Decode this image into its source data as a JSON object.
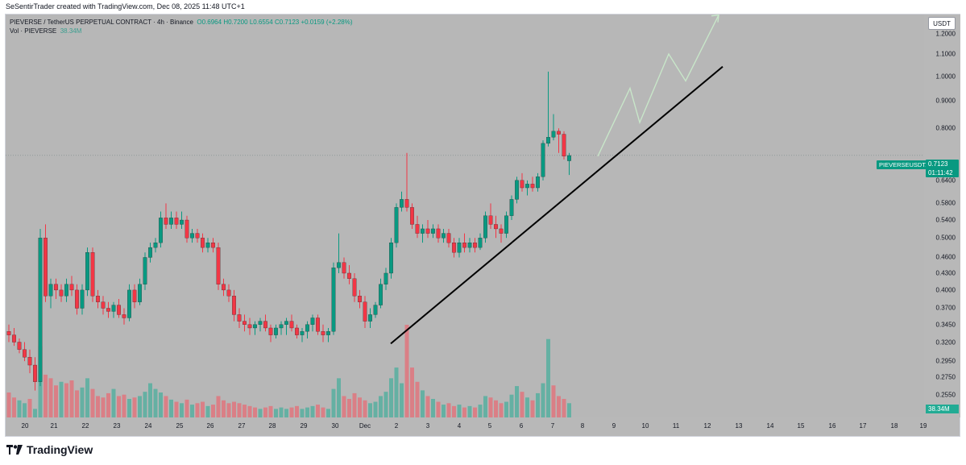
{
  "creator_text": "SeSentirTrader created with TradingView.com, Dec 08, 2025 11:48 UTC+1",
  "legend": {
    "symbol_line": "PIEVERSE / TetherUS PERPETUAL CONTRACT · 4h · Binance",
    "open": "O0.6964",
    "high": "H0.7200",
    "low": "L0.6554",
    "close": "C0.7123",
    "change": "+0.0159 (+2.28%)",
    "vol_label": "Vol · PIEVERSE",
    "vol_value": "38.34M"
  },
  "currency_button": "USDT",
  "price_axis_labels": [
    "1.2000",
    "1.1000",
    "1.0000",
    "0.9000",
    "0.8000",
    "0.6400",
    "0.5800",
    "0.5400",
    "0.5000",
    "0.4600",
    "0.4300",
    "0.4000",
    "0.3700",
    "0.3450",
    "0.3200",
    "0.2950",
    "0.2750",
    "0.2550"
  ],
  "last_price": {
    "symbol": "PIEVERSEUSDT.P",
    "price": "0.7123",
    "countdown": "01:11:42"
  },
  "volume_tag": "38.34M",
  "time_axis_labels": [
    "20",
    "21",
    "22",
    "23",
    "24",
    "25",
    "26",
    "27",
    "28",
    "29",
    "30",
    "Dec",
    "2",
    "3",
    "4",
    "5",
    "6",
    "7",
    "8",
    "9",
    "10",
    "11",
    "12",
    "13",
    "14",
    "15",
    "16",
    "17",
    "18",
    "19"
  ],
  "colors": {
    "up": "#089981",
    "down": "#f23645",
    "up_vol": "#22ab94",
    "down_vol": "#f7525f",
    "background": "#b7b7b7",
    "projection": "#c8e6c9"
  },
  "footer_brand": "TradingView",
  "chart_data": {
    "type": "candlestick",
    "symbol": "PIEVERSEUSDT.P",
    "interval": "4h",
    "ylim": [
      0.25,
      1.25
    ],
    "candles": [
      [
        0.335,
        0.345,
        0.32,
        0.33
      ],
      [
        0.33,
        0.34,
        0.315,
        0.32
      ],
      [
        0.32,
        0.325,
        0.305,
        0.31
      ],
      [
        0.31,
        0.32,
        0.295,
        0.3
      ],
      [
        0.3,
        0.31,
        0.28,
        0.29
      ],
      [
        0.29,
        0.3,
        0.26,
        0.27
      ],
      [
        0.27,
        0.52,
        0.265,
        0.5
      ],
      [
        0.5,
        0.53,
        0.38,
        0.39
      ],
      [
        0.39,
        0.42,
        0.37,
        0.41
      ],
      [
        0.41,
        0.42,
        0.385,
        0.4
      ],
      [
        0.4,
        0.41,
        0.38,
        0.39
      ],
      [
        0.39,
        0.42,
        0.38,
        0.41
      ],
      [
        0.41,
        0.425,
        0.39,
        0.4
      ],
      [
        0.4,
        0.41,
        0.36,
        0.37
      ],
      [
        0.37,
        0.41,
        0.36,
        0.4
      ],
      [
        0.4,
        0.48,
        0.39,
        0.47
      ],
      [
        0.47,
        0.48,
        0.38,
        0.39
      ],
      [
        0.39,
        0.4,
        0.37,
        0.38
      ],
      [
        0.38,
        0.39,
        0.36,
        0.37
      ],
      [
        0.37,
        0.38,
        0.355,
        0.365
      ],
      [
        0.365,
        0.38,
        0.355,
        0.375
      ],
      [
        0.375,
        0.385,
        0.355,
        0.36
      ],
      [
        0.36,
        0.37,
        0.345,
        0.355
      ],
      [
        0.355,
        0.41,
        0.35,
        0.4
      ],
      [
        0.4,
        0.41,
        0.37,
        0.38
      ],
      [
        0.38,
        0.42,
        0.375,
        0.41
      ],
      [
        0.41,
        0.47,
        0.4,
        0.46
      ],
      [
        0.46,
        0.49,
        0.45,
        0.48
      ],
      [
        0.48,
        0.5,
        0.47,
        0.49
      ],
      [
        0.49,
        0.56,
        0.48,
        0.545
      ],
      [
        0.545,
        0.58,
        0.52,
        0.53
      ],
      [
        0.53,
        0.56,
        0.52,
        0.545
      ],
      [
        0.545,
        0.56,
        0.52,
        0.53
      ],
      [
        0.53,
        0.56,
        0.52,
        0.54
      ],
      [
        0.54,
        0.55,
        0.49,
        0.5
      ],
      [
        0.5,
        0.52,
        0.49,
        0.51
      ],
      [
        0.51,
        0.52,
        0.49,
        0.5
      ],
      [
        0.5,
        0.51,
        0.47,
        0.48
      ],
      [
        0.48,
        0.5,
        0.47,
        0.49
      ],
      [
        0.49,
        0.5,
        0.47,
        0.48
      ],
      [
        0.48,
        0.49,
        0.4,
        0.41
      ],
      [
        0.41,
        0.42,
        0.39,
        0.4
      ],
      [
        0.4,
        0.41,
        0.38,
        0.39
      ],
      [
        0.39,
        0.4,
        0.35,
        0.36
      ],
      [
        0.36,
        0.37,
        0.34,
        0.35
      ],
      [
        0.35,
        0.36,
        0.335,
        0.345
      ],
      [
        0.345,
        0.355,
        0.33,
        0.34
      ],
      [
        0.34,
        0.35,
        0.33,
        0.345
      ],
      [
        0.345,
        0.355,
        0.335,
        0.35
      ],
      [
        0.35,
        0.36,
        0.335,
        0.34
      ],
      [
        0.34,
        0.345,
        0.32,
        0.33
      ],
      [
        0.33,
        0.345,
        0.325,
        0.34
      ],
      [
        0.34,
        0.35,
        0.33,
        0.345
      ],
      [
        0.345,
        0.355,
        0.33,
        0.35
      ],
      [
        0.35,
        0.36,
        0.335,
        0.34
      ],
      [
        0.34,
        0.345,
        0.325,
        0.33
      ],
      [
        0.33,
        0.34,
        0.32,
        0.335
      ],
      [
        0.335,
        0.35,
        0.325,
        0.345
      ],
      [
        0.345,
        0.36,
        0.335,
        0.355
      ],
      [
        0.355,
        0.36,
        0.33,
        0.335
      ],
      [
        0.335,
        0.345,
        0.32,
        0.33
      ],
      [
        0.33,
        0.34,
        0.32,
        0.335
      ],
      [
        0.335,
        0.45,
        0.33,
        0.44
      ],
      [
        0.44,
        0.51,
        0.43,
        0.45
      ],
      [
        0.45,
        0.46,
        0.42,
        0.43
      ],
      [
        0.43,
        0.445,
        0.41,
        0.42
      ],
      [
        0.42,
        0.43,
        0.38,
        0.39
      ],
      [
        0.39,
        0.4,
        0.37,
        0.38
      ],
      [
        0.38,
        0.39,
        0.34,
        0.35
      ],
      [
        0.35,
        0.37,
        0.34,
        0.36
      ],
      [
        0.36,
        0.38,
        0.355,
        0.375
      ],
      [
        0.375,
        0.42,
        0.37,
        0.41
      ],
      [
        0.41,
        0.44,
        0.4,
        0.43
      ],
      [
        0.43,
        0.5,
        0.42,
        0.49
      ],
      [
        0.49,
        0.58,
        0.48,
        0.57
      ],
      [
        0.57,
        0.61,
        0.56,
        0.59
      ],
      [
        0.59,
        0.72,
        0.56,
        0.57
      ],
      [
        0.57,
        0.58,
        0.52,
        0.53
      ],
      [
        0.53,
        0.55,
        0.5,
        0.51
      ],
      [
        0.51,
        0.53,
        0.49,
        0.52
      ],
      [
        0.52,
        0.54,
        0.5,
        0.51
      ],
      [
        0.51,
        0.53,
        0.5,
        0.52
      ],
      [
        0.52,
        0.53,
        0.49,
        0.5
      ],
      [
        0.5,
        0.52,
        0.49,
        0.51
      ],
      [
        0.51,
        0.52,
        0.48,
        0.49
      ],
      [
        0.49,
        0.5,
        0.46,
        0.47
      ],
      [
        0.47,
        0.5,
        0.46,
        0.49
      ],
      [
        0.49,
        0.51,
        0.47,
        0.48
      ],
      [
        0.48,
        0.5,
        0.47,
        0.49
      ],
      [
        0.49,
        0.5,
        0.47,
        0.48
      ],
      [
        0.48,
        0.51,
        0.475,
        0.5
      ],
      [
        0.5,
        0.56,
        0.49,
        0.55
      ],
      [
        0.55,
        0.58,
        0.52,
        0.53
      ],
      [
        0.53,
        0.55,
        0.5,
        0.52
      ],
      [
        0.52,
        0.53,
        0.49,
        0.51
      ],
      [
        0.51,
        0.56,
        0.5,
        0.55
      ],
      [
        0.55,
        0.6,
        0.54,
        0.59
      ],
      [
        0.59,
        0.65,
        0.58,
        0.64
      ],
      [
        0.64,
        0.66,
        0.61,
        0.62
      ],
      [
        0.62,
        0.64,
        0.6,
        0.63
      ],
      [
        0.63,
        0.65,
        0.61,
        0.62
      ],
      [
        0.62,
        0.66,
        0.61,
        0.65
      ],
      [
        0.65,
        0.76,
        0.64,
        0.75
      ],
      [
        0.75,
        1.02,
        0.74,
        0.77
      ],
      [
        0.77,
        0.85,
        0.76,
        0.79
      ],
      [
        0.79,
        0.8,
        0.72,
        0.78
      ],
      [
        0.78,
        0.79,
        0.7,
        0.71
      ],
      [
        0.696,
        0.72,
        0.655,
        0.712
      ]
    ],
    "volume": [
      [
        35,
        0
      ],
      [
        28,
        0
      ],
      [
        24,
        1
      ],
      [
        20,
        1
      ],
      [
        26,
        0
      ],
      [
        12,
        1
      ],
      [
        100,
        1
      ],
      [
        60,
        0
      ],
      [
        55,
        0
      ],
      [
        45,
        0
      ],
      [
        50,
        1
      ],
      [
        48,
        0
      ],
      [
        52,
        0
      ],
      [
        38,
        0
      ],
      [
        42,
        1
      ],
      [
        55,
        1
      ],
      [
        40,
        0
      ],
      [
        30,
        0
      ],
      [
        28,
        0
      ],
      [
        34,
        0
      ],
      [
        40,
        1
      ],
      [
        30,
        0
      ],
      [
        32,
        0
      ],
      [
        26,
        1
      ],
      [
        28,
        0
      ],
      [
        30,
        1
      ],
      [
        36,
        1
      ],
      [
        48,
        1
      ],
      [
        40,
        1
      ],
      [
        35,
        1
      ],
      [
        30,
        0
      ],
      [
        25,
        1
      ],
      [
        22,
        0
      ],
      [
        20,
        1
      ],
      [
        25,
        0
      ],
      [
        18,
        1
      ],
      [
        20,
        0
      ],
      [
        22,
        0
      ],
      [
        16,
        1
      ],
      [
        18,
        0
      ],
      [
        30,
        0
      ],
      [
        24,
        0
      ],
      [
        20,
        0
      ],
      [
        22,
        0
      ],
      [
        20,
        0
      ],
      [
        18,
        0
      ],
      [
        16,
        0
      ],
      [
        14,
        0
      ],
      [
        12,
        1
      ],
      [
        14,
        0
      ],
      [
        16,
        0
      ],
      [
        12,
        1
      ],
      [
        14,
        1
      ],
      [
        12,
        1
      ],
      [
        14,
        0
      ],
      [
        16,
        0
      ],
      [
        12,
        1
      ],
      [
        14,
        1
      ],
      [
        16,
        1
      ],
      [
        18,
        0
      ],
      [
        14,
        0
      ],
      [
        12,
        1
      ],
      [
        40,
        1
      ],
      [
        55,
        1
      ],
      [
        30,
        0
      ],
      [
        26,
        0
      ],
      [
        34,
        0
      ],
      [
        28,
        0
      ],
      [
        24,
        0
      ],
      [
        20,
        1
      ],
      [
        22,
        1
      ],
      [
        30,
        1
      ],
      [
        36,
        1
      ],
      [
        55,
        1
      ],
      [
        70,
        1
      ],
      [
        48,
        1
      ],
      [
        130,
        0
      ],
      [
        70,
        0
      ],
      [
        50,
        0
      ],
      [
        38,
        1
      ],
      [
        30,
        0
      ],
      [
        26,
        1
      ],
      [
        22,
        0
      ],
      [
        18,
        1
      ],
      [
        20,
        0
      ],
      [
        16,
        0
      ],
      [
        18,
        1
      ],
      [
        14,
        0
      ],
      [
        16,
        1
      ],
      [
        14,
        0
      ],
      [
        18,
        1
      ],
      [
        30,
        1
      ],
      [
        28,
        0
      ],
      [
        24,
        0
      ],
      [
        20,
        0
      ],
      [
        22,
        1
      ],
      [
        32,
        1
      ],
      [
        44,
        1
      ],
      [
        36,
        0
      ],
      [
        28,
        1
      ],
      [
        24,
        0
      ],
      [
        34,
        1
      ],
      [
        48,
        1
      ],
      [
        110,
        1
      ],
      [
        45,
        0
      ],
      [
        30,
        0
      ],
      [
        26,
        0
      ],
      [
        20,
        1
      ]
    ],
    "trendline": [
      [
        0.318,
        0.648
      ],
      [
        1.042,
        0.0
      ]
    ],
    "projection": [
      0.71,
      0.95,
      0.82,
      1.1,
      0.98,
      1.3
    ]
  }
}
